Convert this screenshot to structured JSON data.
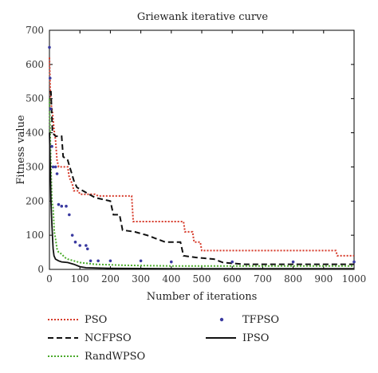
{
  "chart_data": {
    "type": "line",
    "title": "Griewank iterative curve",
    "xlabel": "Number of iterations",
    "ylabel": "Fitness value",
    "xlim": [
      0,
      1000
    ],
    "ylim": [
      0,
      700
    ],
    "xticks": [
      0,
      100,
      200,
      300,
      400,
      500,
      600,
      700,
      800,
      900,
      1000
    ],
    "yticks": [
      0,
      100,
      200,
      300,
      400,
      500,
      600,
      700
    ],
    "grid": false,
    "legend_position": "bottom",
    "series": [
      {
        "name": "PSO",
        "color": "#d63a2a",
        "style": "dotted",
        "points": [
          [
            0,
            620
          ],
          [
            3,
            520
          ],
          [
            6,
            480
          ],
          [
            10,
            460
          ],
          [
            15,
            410
          ],
          [
            20,
            380
          ],
          [
            25,
            320
          ],
          [
            30,
            300
          ],
          [
            60,
            300
          ],
          [
            65,
            270
          ],
          [
            75,
            250
          ],
          [
            80,
            230
          ],
          [
            95,
            230
          ],
          [
            100,
            220
          ],
          [
            150,
            220
          ],
          [
            160,
            215
          ],
          [
            270,
            215
          ],
          [
            275,
            140
          ],
          [
            440,
            140
          ],
          [
            445,
            110
          ],
          [
            470,
            110
          ],
          [
            475,
            80
          ],
          [
            495,
            80
          ],
          [
            500,
            55
          ],
          [
            940,
            55
          ],
          [
            945,
            40
          ],
          [
            1000,
            40
          ]
        ]
      },
      {
        "name": "NCFPSO",
        "color": "#111111",
        "style": "dashed",
        "points": [
          [
            0,
            520
          ],
          [
            5,
            520
          ],
          [
            10,
            400
          ],
          [
            20,
            390
          ],
          [
            40,
            390
          ],
          [
            45,
            330
          ],
          [
            60,
            320
          ],
          [
            80,
            260
          ],
          [
            90,
            240
          ],
          [
            110,
            230
          ],
          [
            130,
            220
          ],
          [
            150,
            210
          ],
          [
            200,
            200
          ],
          [
            210,
            160
          ],
          [
            230,
            160
          ],
          [
            240,
            115
          ],
          [
            280,
            110
          ],
          [
            320,
            100
          ],
          [
            350,
            90
          ],
          [
            380,
            80
          ],
          [
            430,
            80
          ],
          [
            440,
            40
          ],
          [
            480,
            35
          ],
          [
            540,
            30
          ],
          [
            570,
            20
          ],
          [
            640,
            15
          ],
          [
            1000,
            15
          ]
        ]
      },
      {
        "name": "RandWPSO",
        "color": "#4aaa2a",
        "style": "dotted",
        "points": [
          [
            0,
            500
          ],
          [
            3,
            380
          ],
          [
            5,
            300
          ],
          [
            8,
            200
          ],
          [
            12,
            180
          ],
          [
            16,
            110
          ],
          [
            20,
            90
          ],
          [
            25,
            60
          ],
          [
            30,
            50
          ],
          [
            40,
            45
          ],
          [
            50,
            35
          ],
          [
            60,
            30
          ],
          [
            80,
            25
          ],
          [
            100,
            20
          ],
          [
            150,
            15
          ],
          [
            250,
            12
          ],
          [
            400,
            10
          ],
          [
            1000,
            10
          ]
        ]
      },
      {
        "name": "TFPSO",
        "color": "#3a3aa0",
        "style": "markers",
        "points": [
          [
            0,
            650
          ],
          [
            2,
            560
          ],
          [
            4,
            470
          ],
          [
            8,
            360
          ],
          [
            12,
            300
          ],
          [
            20,
            300
          ],
          [
            25,
            280
          ],
          [
            30,
            190
          ],
          [
            40,
            185
          ],
          [
            55,
            185
          ],
          [
            65,
            160
          ],
          [
            75,
            100
          ],
          [
            85,
            80
          ],
          [
            100,
            70
          ],
          [
            120,
            70
          ],
          [
            125,
            60
          ],
          [
            135,
            25
          ],
          [
            160,
            25
          ],
          [
            200,
            25
          ],
          [
            300,
            25
          ],
          [
            400,
            22
          ],
          [
            600,
            22
          ],
          [
            800,
            22
          ],
          [
            1000,
            22
          ]
        ]
      },
      {
        "name": "IPSO",
        "color": "#111111",
        "style": "solid",
        "points": [
          [
            0,
            400
          ],
          [
            3,
            300
          ],
          [
            5,
            200
          ],
          [
            8,
            130
          ],
          [
            12,
            60
          ],
          [
            15,
            40
          ],
          [
            20,
            30
          ],
          [
            30,
            25
          ],
          [
            40,
            22
          ],
          [
            60,
            20
          ],
          [
            80,
            15
          ],
          [
            100,
            8
          ],
          [
            120,
            5
          ],
          [
            200,
            3
          ],
          [
            400,
            2
          ],
          [
            1000,
            2
          ]
        ]
      }
    ]
  }
}
